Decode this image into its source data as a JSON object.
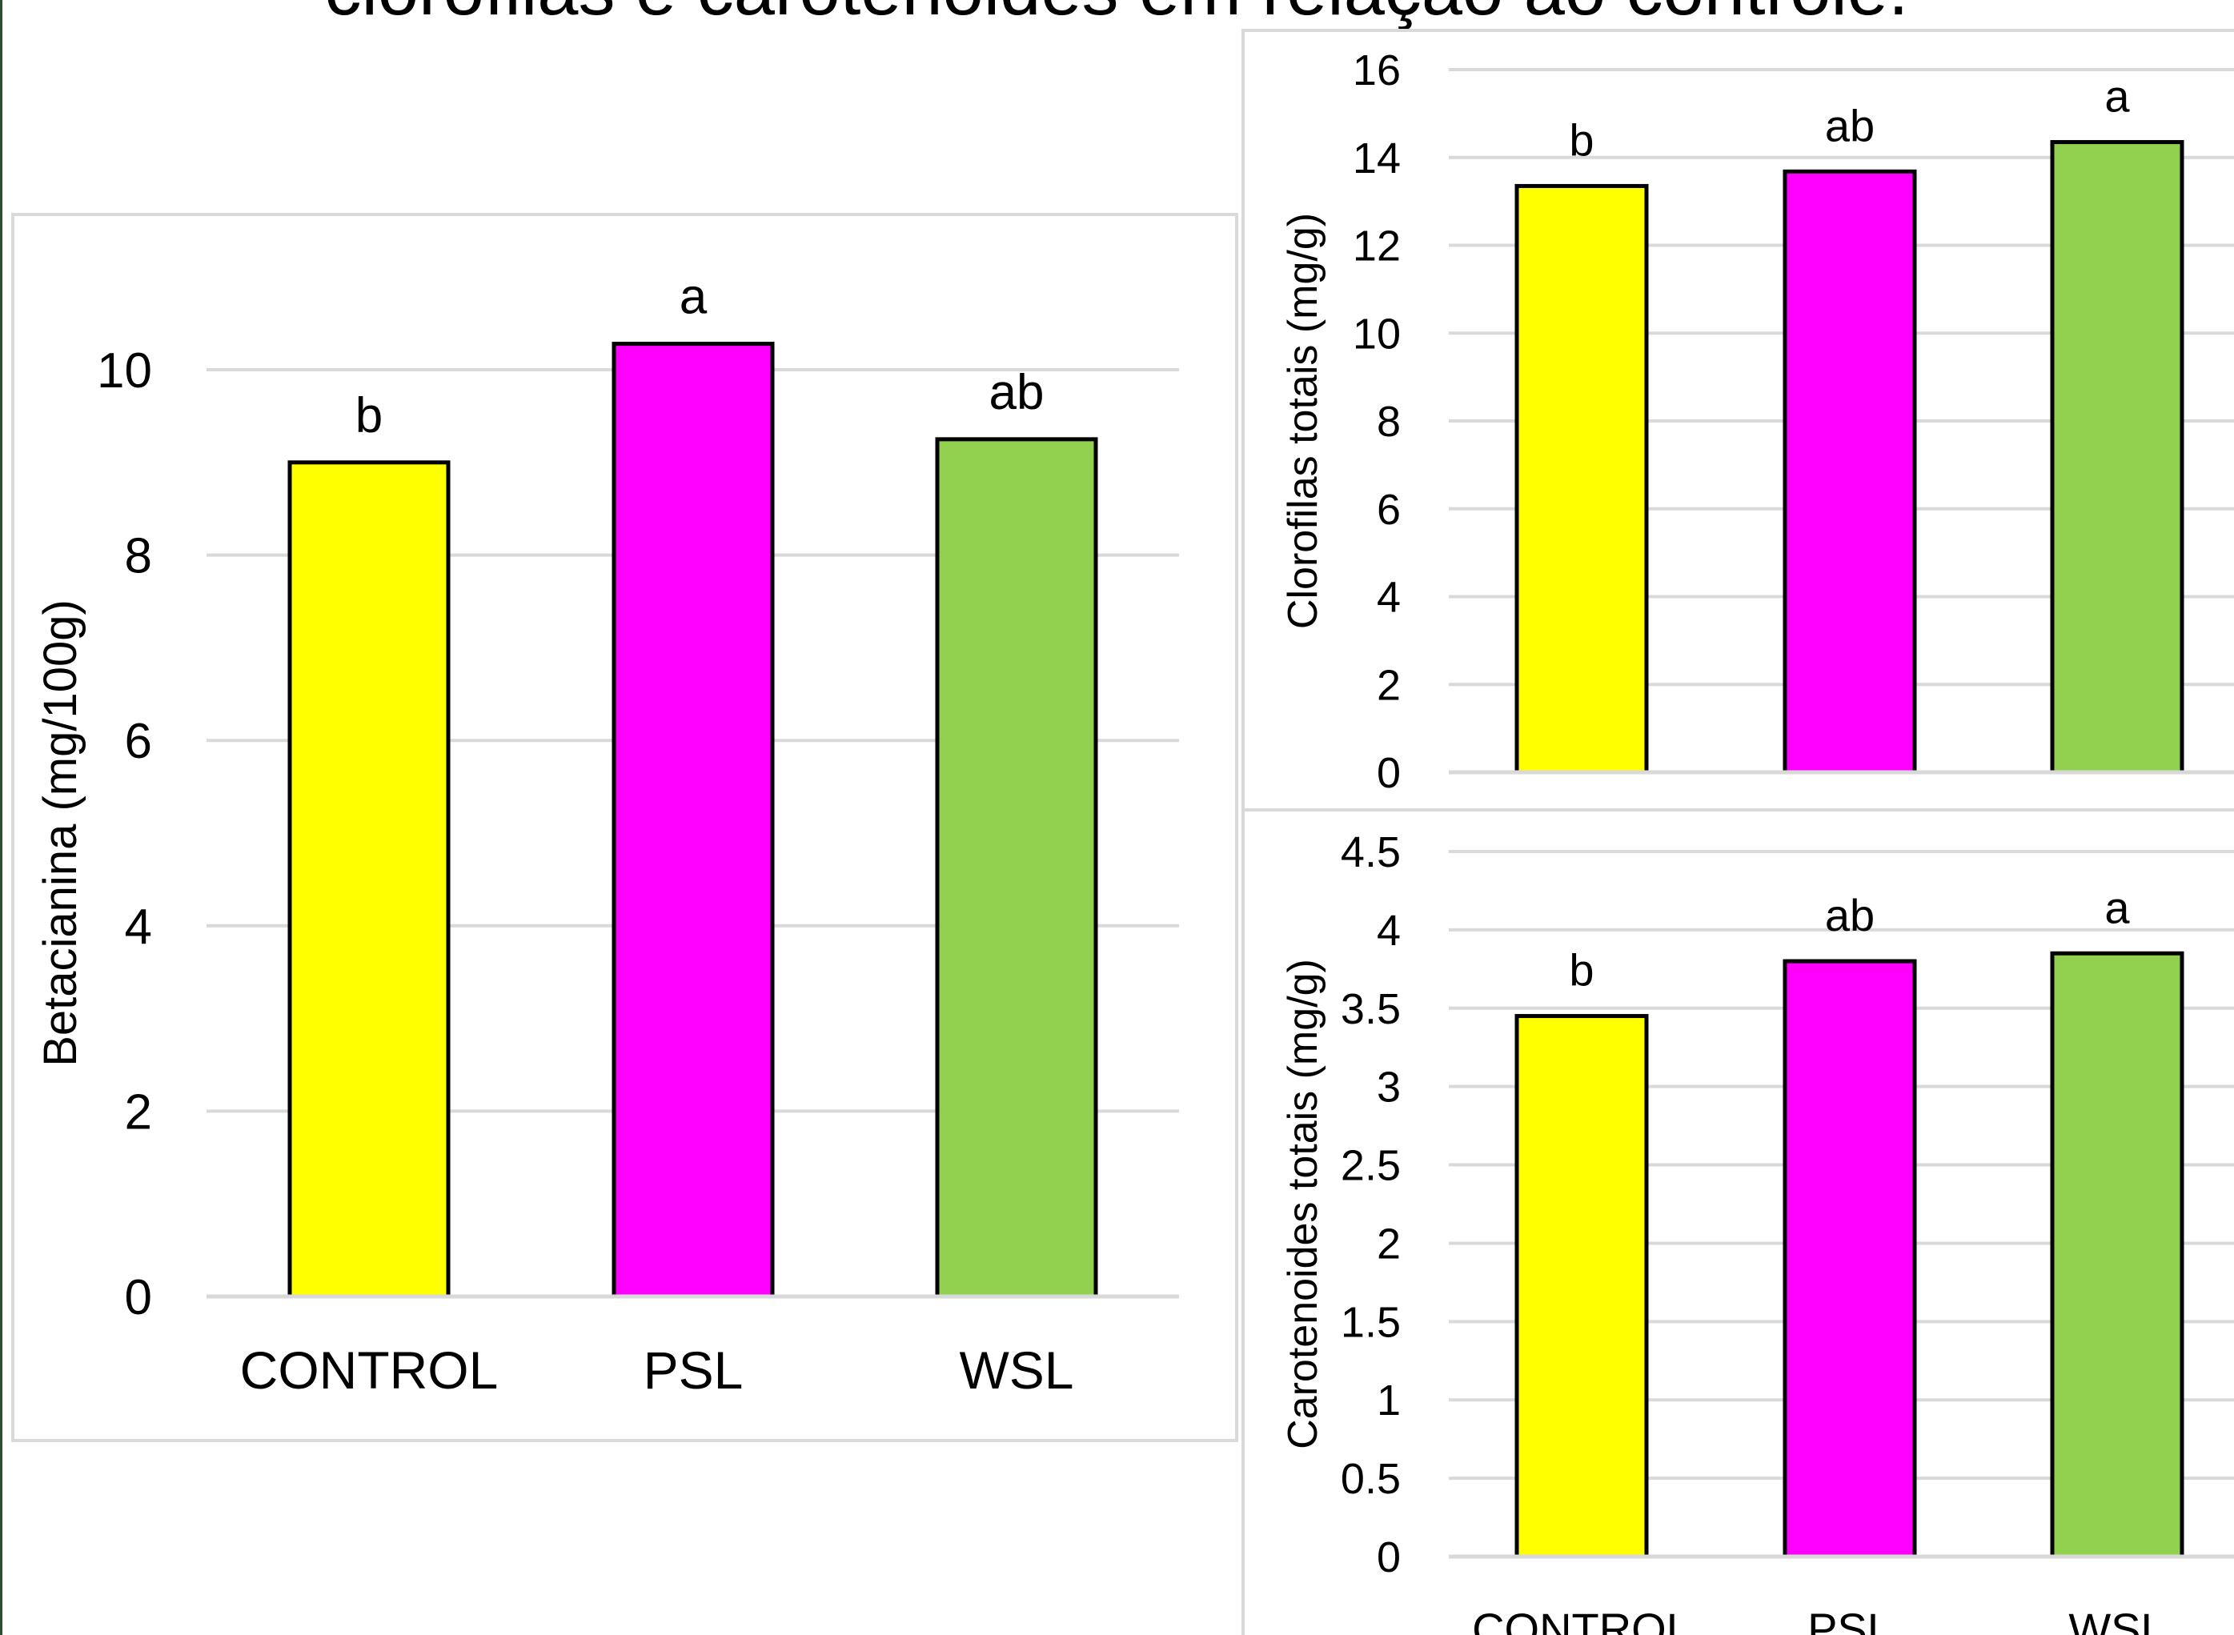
{
  "header": {
    "title": "clorofilas e carotenoides em relação ao controle."
  },
  "chart_data": [
    {
      "type": "bar",
      "categories": [
        "CONTROL",
        "PSL",
        "WSL"
      ],
      "values": [
        9.0,
        10.28,
        9.25
      ],
      "bar_labels": [
        "b",
        "a",
        "ab"
      ],
      "colors": [
        "#ffff00",
        "#ff00ff",
        "#92d050"
      ],
      "ylabel": "Betacianina (mg/100g)",
      "ylim": [
        0,
        10
      ],
      "yticks": [
        "0",
        "2",
        "4",
        "6",
        "8",
        "10"
      ],
      "grid": true
    },
    {
      "type": "bar",
      "categories": [
        "CONTROL",
        "PSL",
        "WSL"
      ],
      "values": [
        13.35,
        13.68,
        14.35
      ],
      "bar_labels": [
        "b",
        "ab",
        "a"
      ],
      "colors": [
        "#ffff00",
        "#ff00ff",
        "#92d050"
      ],
      "ylabel": "Clorofilas totais (mg/g)",
      "ylim": [
        0,
        16
      ],
      "yticks": [
        "0",
        "2",
        "4",
        "6",
        "8",
        "10",
        "12",
        "14",
        "16"
      ],
      "grid": true
    },
    {
      "type": "bar",
      "categories": [
        "CONTROL",
        "PSL",
        "WSL"
      ],
      "values": [
        3.45,
        3.8,
        3.85
      ],
      "bar_labels": [
        "b",
        "ab",
        "a"
      ],
      "colors": [
        "#ffff00",
        "#ff00ff",
        "#92d050"
      ],
      "ylabel": "Carotenoides totais (mg/g)",
      "ylim": [
        0,
        4.5
      ],
      "yticks": [
        "0",
        "0.5",
        "1",
        "1.5",
        "2",
        "2.5",
        "3",
        "3.5",
        "4",
        "4.5"
      ],
      "grid": true
    }
  ]
}
